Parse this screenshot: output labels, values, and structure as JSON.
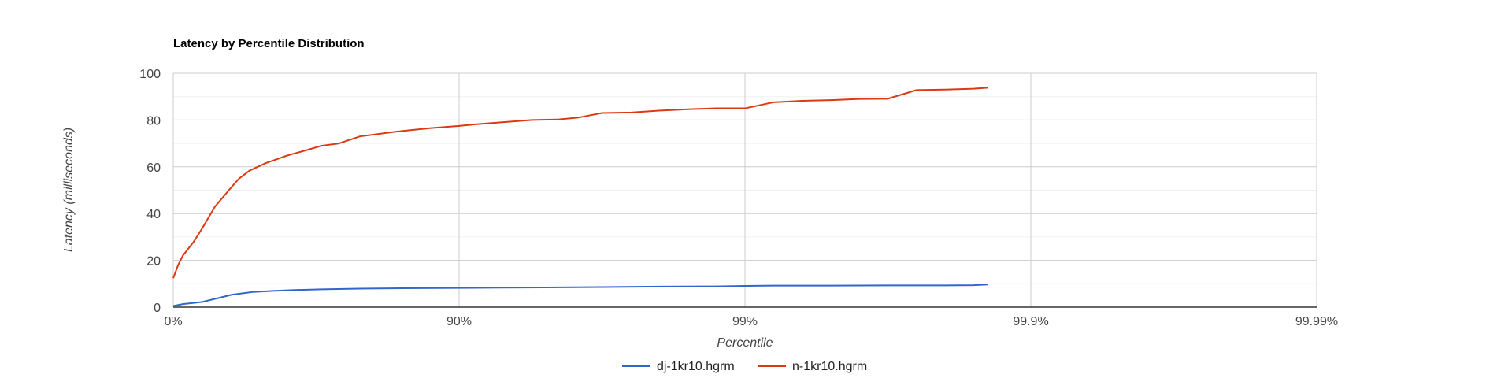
{
  "chart_data": {
    "type": "line",
    "title": "Latency by Percentile Distribution",
    "xlabel": "Percentile",
    "ylabel": "Latency (milliseconds)",
    "x_scale": "log (1 / (1 - percentile))",
    "xlim": [
      1,
      10000
    ],
    "ylim": [
      0,
      100
    ],
    "x_ticks": [
      {
        "x": 1,
        "label": "0%"
      },
      {
        "x": 10,
        "label": "90%"
      },
      {
        "x": 100,
        "label": "99%"
      },
      {
        "x": 1000,
        "label": "99.9%"
      },
      {
        "x": 10000,
        "label": "99.99%"
      }
    ],
    "y_ticks": [
      0,
      20,
      40,
      60,
      80,
      100
    ],
    "grid": true,
    "legend_position": "bottom",
    "series": [
      {
        "name": "dj-1kr10.hgrm",
        "color": "#3366cc",
        "points": [
          [
            1,
            0.5
          ],
          [
            1.08,
            1.3
          ],
          [
            1.26,
            2.2
          ],
          [
            1.45,
            4.0
          ],
          [
            1.6,
            5.3
          ],
          [
            1.72,
            5.8
          ],
          [
            1.9,
            6.5
          ],
          [
            2.2,
            6.9
          ],
          [
            2.6,
            7.3
          ],
          [
            3.3,
            7.6
          ],
          [
            4.5,
            7.9
          ],
          [
            6.3,
            8.1
          ],
          [
            10,
            8.2
          ],
          [
            12.6,
            8.3
          ],
          [
            20,
            8.4
          ],
          [
            31.6,
            8.6
          ],
          [
            50,
            8.8
          ],
          [
            79,
            8.9
          ],
          [
            100,
            9.1
          ],
          [
            126,
            9.2
          ],
          [
            200,
            9.2
          ],
          [
            316,
            9.3
          ],
          [
            501,
            9.3
          ],
          [
            631,
            9.4
          ],
          [
            708,
            9.7
          ]
        ]
      },
      {
        "name": "n-1kr10.hgrm",
        "color": "#dc3912",
        "points": [
          [
            1,
            12.4
          ],
          [
            1.04,
            18.0
          ],
          [
            1.08,
            22.0
          ],
          [
            1.18,
            28.0
          ],
          [
            1.26,
            33.5
          ],
          [
            1.4,
            43.0
          ],
          [
            1.58,
            50.6
          ],
          [
            1.7,
            55.0
          ],
          [
            1.85,
            58.4
          ],
          [
            2.1,
            61.5
          ],
          [
            2.5,
            64.8
          ],
          [
            2.9,
            67.0
          ],
          [
            3.3,
            69.0
          ],
          [
            3.8,
            70.0
          ],
          [
            4.5,
            73.0
          ],
          [
            6.0,
            75.0
          ],
          [
            7.9,
            76.5
          ],
          [
            10,
            77.5
          ],
          [
            11.5,
            78.2
          ],
          [
            14,
            79.0
          ],
          [
            18,
            80.0
          ],
          [
            22,
            80.2
          ],
          [
            26,
            81.0
          ],
          [
            31.6,
            83.0
          ],
          [
            40,
            83.2
          ],
          [
            50,
            84.0
          ],
          [
            63,
            84.6
          ],
          [
            79,
            85.0
          ],
          [
            100,
            85.0
          ],
          [
            126,
            87.6
          ],
          [
            158,
            88.2
          ],
          [
            200,
            88.5
          ],
          [
            251,
            89.0
          ],
          [
            316,
            89.1
          ],
          [
            398,
            92.8
          ],
          [
            501,
            93.0
          ],
          [
            631,
            93.4
          ],
          [
            708,
            93.8
          ]
        ]
      }
    ]
  }
}
